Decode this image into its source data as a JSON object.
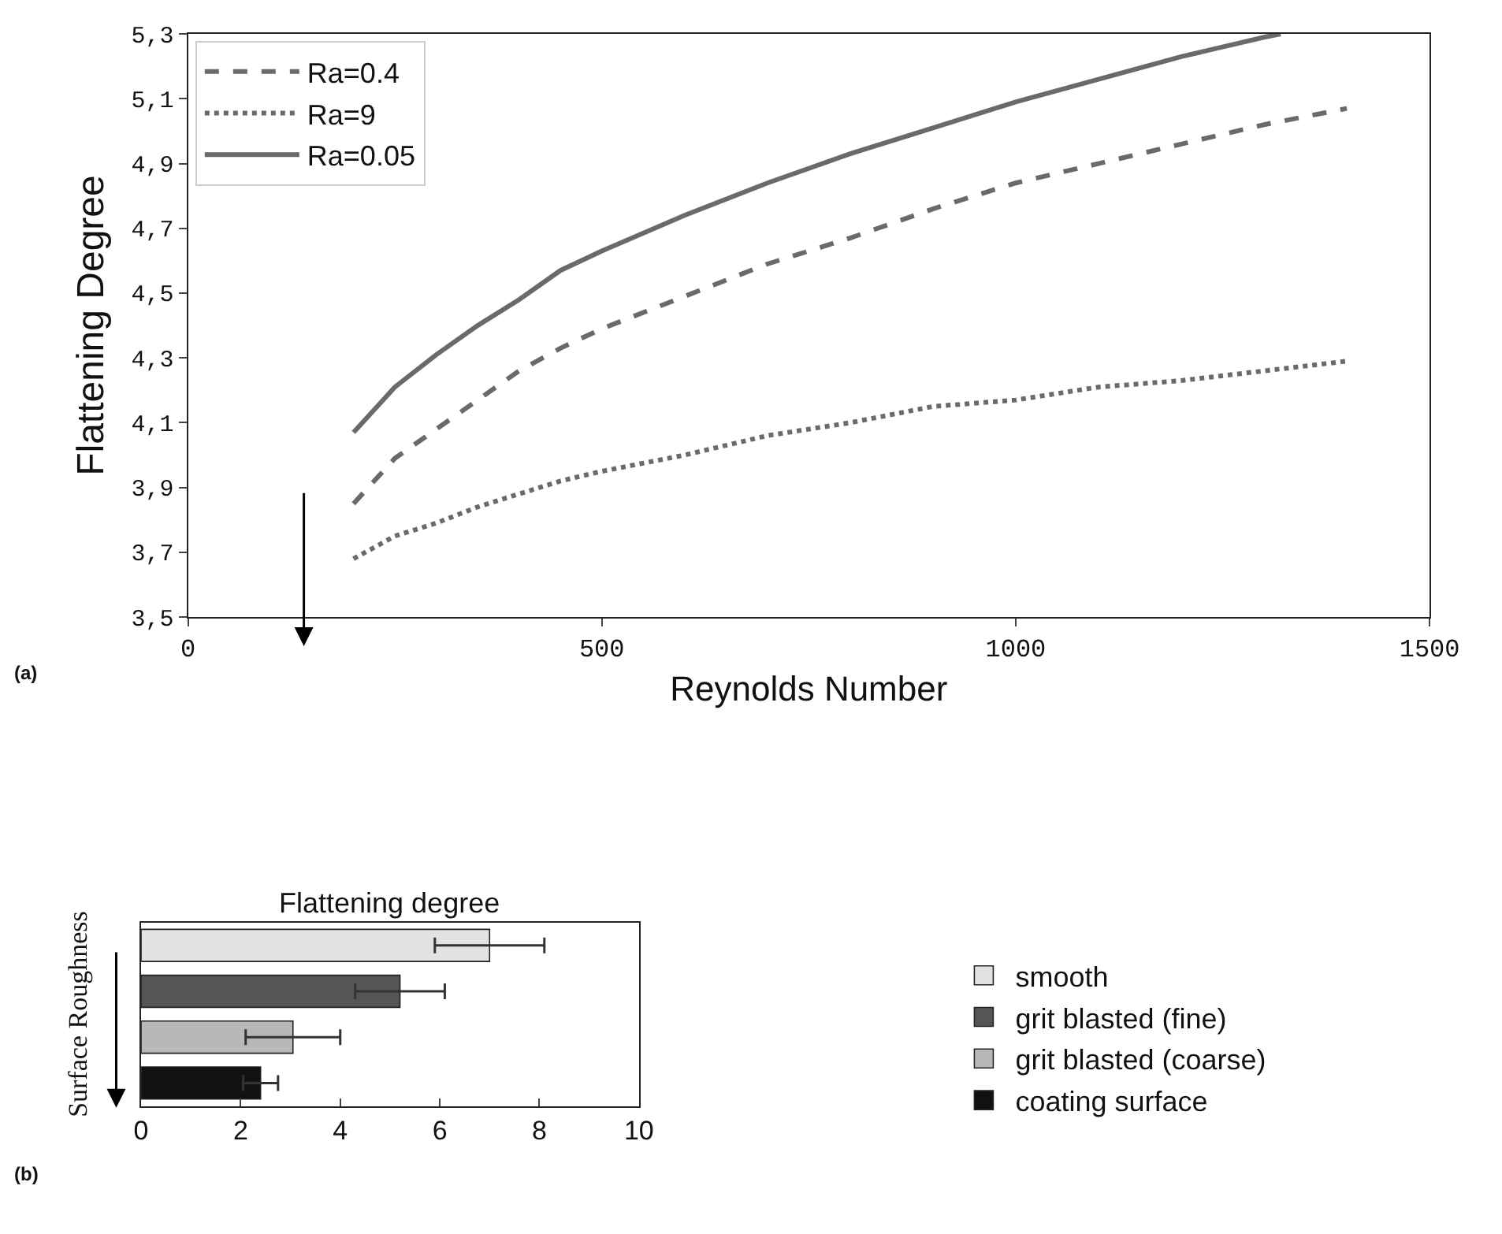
{
  "chart_data": [
    {
      "type": "line",
      "xlabel": "Reynolds Number",
      "ylabel": "Flattening Degree",
      "xlim": [
        0,
        1500
      ],
      "xticks": [
        0,
        500,
        1000,
        1500
      ],
      "ylim": [
        3.5,
        5.3
      ],
      "yticks": [
        {
          "value": 3.5,
          "label": "3,5"
        },
        {
          "value": 3.7,
          "label": "3,7"
        },
        {
          "value": 3.9,
          "label": "3,9"
        },
        {
          "value": 4.1,
          "label": "4,1"
        },
        {
          "value": 4.3,
          "label": "4,3"
        },
        {
          "value": 4.5,
          "label": "4,5"
        },
        {
          "value": 4.7,
          "label": "4,7"
        },
        {
          "value": 4.9,
          "label": "4,9"
        },
        {
          "value": 5.1,
          "label": "5,1"
        },
        {
          "value": 5.3,
          "label": "5,3"
        }
      ],
      "legend": "top left",
      "marker": "none",
      "annotations": [
        "(a)"
      ],
      "series": [
        {
          "name": "Ra=0.4",
          "color": "#6a6a6a",
          "line_style": "dashed",
          "x": [
            200,
            250,
            300,
            350,
            400,
            450,
            500,
            600,
            700,
            800,
            900,
            1000,
            1100,
            1200,
            1300,
            1400
          ],
          "values": [
            3.85,
            3.99,
            4.08,
            4.17,
            4.26,
            4.33,
            4.39,
            4.49,
            4.59,
            4.67,
            4.76,
            4.84,
            4.9,
            4.96,
            5.02,
            5.07
          ]
        },
        {
          "name": "Ra=9",
          "color": "#6a6a6a",
          "line_style": "dotted",
          "x": [
            200,
            250,
            300,
            350,
            400,
            450,
            500,
            600,
            700,
            800,
            900,
            1000,
            1100,
            1200,
            1300,
            1400
          ],
          "values": [
            3.68,
            3.75,
            3.79,
            3.84,
            3.88,
            3.92,
            3.95,
            4.0,
            4.06,
            4.1,
            4.15,
            4.17,
            4.21,
            4.23,
            4.26,
            4.29
          ]
        },
        {
          "name": "Ra=0.05",
          "color": "#6a6a6a",
          "line_style": "solid",
          "x": [
            200,
            250,
            300,
            350,
            400,
            450,
            500,
            600,
            700,
            800,
            900,
            1000,
            1100,
            1200,
            1300,
            1320
          ],
          "values": [
            4.07,
            4.21,
            4.31,
            4.4,
            4.48,
            4.57,
            4.63,
            4.74,
            4.84,
            4.93,
            5.01,
            5.09,
            5.16,
            5.23,
            5.29,
            5.3
          ]
        }
      ]
    },
    {
      "type": "bar",
      "orientation": "horizontal",
      "title": "Flattening degree",
      "ylabel": "Surface Roughness",
      "categories": [
        null,
        null,
        null,
        null
      ],
      "xlim": [
        0,
        10
      ],
      "xticks": [
        0,
        2,
        4,
        6,
        8,
        10
      ],
      "legend": "right",
      "tick_labels": "x",
      "annotations": [
        "(b)"
      ],
      "series": [
        {
          "name": "smooth",
          "color": "#e2e2e2",
          "values": [
            7.0,
            null,
            null,
            null
          ],
          "errors": [
            [
              5.9,
              8.1
            ],
            null,
            null,
            null
          ]
        },
        {
          "name": "grit blasted (fine)",
          "color": "#555555",
          "values": [
            null,
            5.2,
            null,
            null
          ],
          "errors": [
            null,
            [
              4.3,
              6.1
            ],
            null,
            null
          ]
        },
        {
          "name": "grit blasted (coarse)",
          "color": "#b8b8b8",
          "values": [
            null,
            null,
            3.05,
            null
          ],
          "errors": [
            null,
            null,
            [
              2.1,
              4.0
            ],
            null
          ]
        },
        {
          "name": "coating surface",
          "color": "#111111",
          "values": [
            null,
            null,
            null,
            2.4
          ],
          "errors": [
            null,
            null,
            null,
            0.35
          ]
        }
      ]
    }
  ]
}
